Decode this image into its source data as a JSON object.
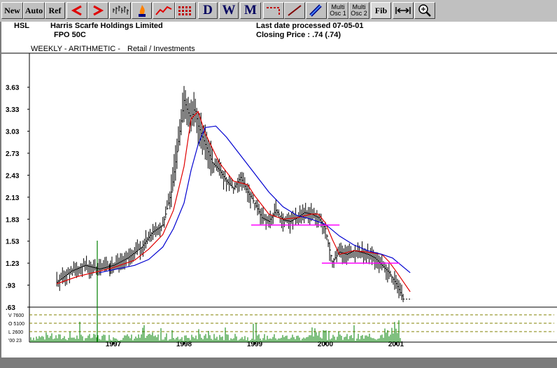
{
  "toolbar": {
    "new": "New",
    "auto": "Auto",
    "ref": "Ref",
    "d": "D",
    "w": "W",
    "m": "M",
    "multi1_a": "Multi",
    "multi1_b": "Osc 1",
    "multi2_a": "Multi",
    "multi2_b": "Osc 2",
    "fib": "Fib",
    "icons": [
      "left-arrow-icon",
      "right-arrow-icon",
      "bar-chart-icon",
      "flame-icon",
      "line-chart-icon",
      "grid-chart-icon",
      "dashed-line-icon",
      "trendline-icon",
      "pencil-icon",
      "fit-width-icon",
      "zoom-icon"
    ]
  },
  "header": {
    "code": "HSL",
    "company": "Harris Scarfe Holdings Limited",
    "security": "FPO 50C",
    "last_date": "Last date processed 07-05-01",
    "closing": "Closing Price : .74  (.74)",
    "mode": "WEEKLY - ARITHMETIC -",
    "sector": "Retail / Investments"
  },
  "colors": {
    "price": "#000000",
    "ma_fast": "#e00000",
    "ma_slow": "#0000d0",
    "support": "#ff00ff",
    "volume": "#008000"
  },
  "chart_data": {
    "type": "line",
    "y_ticks": [
      "3.63",
      "3.33",
      "3.03",
      "2.73",
      "2.43",
      "2.13",
      "1.83",
      "1.53",
      "1.23",
      ".93",
      ".63"
    ],
    "ylim": [
      0.63,
      3.78
    ],
    "x_ticks": [
      "1997",
      "1998",
      "1999",
      "2000",
      "2001"
    ],
    "volume_labels": [
      "V  7600",
      "O  5100",
      "L  2600",
      "'00  23"
    ],
    "series": [
      {
        "key": "price",
        "x": [
          1996.2,
          1996.4,
          1996.6,
          1996.8,
          1997.0,
          1997.2,
          1997.4,
          1997.55,
          1997.7,
          1997.82,
          1997.9,
          1997.95,
          1998.0,
          1998.05,
          1998.1,
          1998.15,
          1998.2,
          1998.3,
          1998.4,
          1998.5,
          1998.6,
          1998.7,
          1998.8,
          1998.9,
          1999.0,
          1999.1,
          1999.2,
          1999.3,
          1999.4,
          1999.5,
          1999.6,
          1999.7,
          1999.8,
          1999.9,
          2000.0,
          2000.05,
          2000.1,
          2000.2,
          2000.3,
          2000.4,
          2000.5,
          2000.6,
          2000.7,
          2000.8,
          2000.9,
          2001.0,
          2001.05,
          2001.1
        ],
        "values": [
          0.97,
          1.12,
          1.2,
          1.15,
          1.2,
          1.3,
          1.45,
          1.65,
          1.75,
          2.2,
          2.75,
          3.1,
          3.45,
          3.3,
          3.2,
          3.35,
          3.1,
          2.85,
          2.6,
          2.5,
          2.35,
          2.25,
          2.4,
          2.2,
          2.05,
          1.85,
          1.8,
          1.95,
          1.82,
          1.8,
          1.85,
          1.92,
          1.9,
          1.85,
          1.7,
          1.45,
          1.25,
          1.38,
          1.35,
          1.4,
          1.38,
          1.35,
          1.3,
          1.2,
          1.1,
          0.95,
          0.85,
          0.74
        ]
      },
      {
        "key": "ma_fast",
        "x": [
          1996.2,
          1996.5,
          1996.8,
          1997.0,
          1997.3,
          1997.5,
          1997.7,
          1997.85,
          1998.0,
          1998.1,
          1998.2,
          1998.3,
          1998.5,
          1998.7,
          1998.9,
          1999.0,
          1999.2,
          1999.4,
          1999.6,
          1999.8,
          1999.9,
          2000.0,
          2000.1,
          2000.2,
          2000.4,
          2000.6,
          2000.8,
          2000.9,
          2001.0,
          2001.1,
          2001.2
        ],
        "values": [
          0.95,
          1.05,
          1.12,
          1.17,
          1.27,
          1.42,
          1.62,
          1.95,
          2.55,
          3.2,
          3.3,
          3.0,
          2.6,
          2.35,
          2.3,
          2.15,
          1.9,
          1.83,
          1.85,
          1.9,
          1.9,
          1.78,
          1.55,
          1.35,
          1.4,
          1.38,
          1.35,
          1.25,
          1.12,
          0.98,
          0.84
        ]
      },
      {
        "key": "ma_slow",
        "x": [
          1996.8,
          1997.0,
          1997.3,
          1997.5,
          1997.7,
          1997.85,
          1998.0,
          1998.1,
          1998.2,
          1998.3,
          1998.45,
          1998.6,
          1998.8,
          1999.0,
          1999.2,
          1999.4,
          1999.6,
          1999.8,
          2000.0,
          2000.2,
          2000.4,
          2000.6,
          2000.8,
          2000.95,
          2001.05,
          2001.2
        ],
        "values": [
          1.1,
          1.14,
          1.2,
          1.28,
          1.45,
          1.7,
          2.05,
          2.5,
          2.85,
          3.08,
          3.1,
          2.95,
          2.7,
          2.45,
          2.2,
          2.0,
          1.88,
          1.83,
          1.76,
          1.6,
          1.48,
          1.4,
          1.35,
          1.3,
          1.22,
          1.1
        ]
      }
    ],
    "support_lines": [
      {
        "x": [
          1998.95,
          2000.2
        ],
        "value": 1.75
      },
      {
        "x": [
          1999.95,
          2001.05
        ],
        "value": 1.23
      }
    ]
  }
}
